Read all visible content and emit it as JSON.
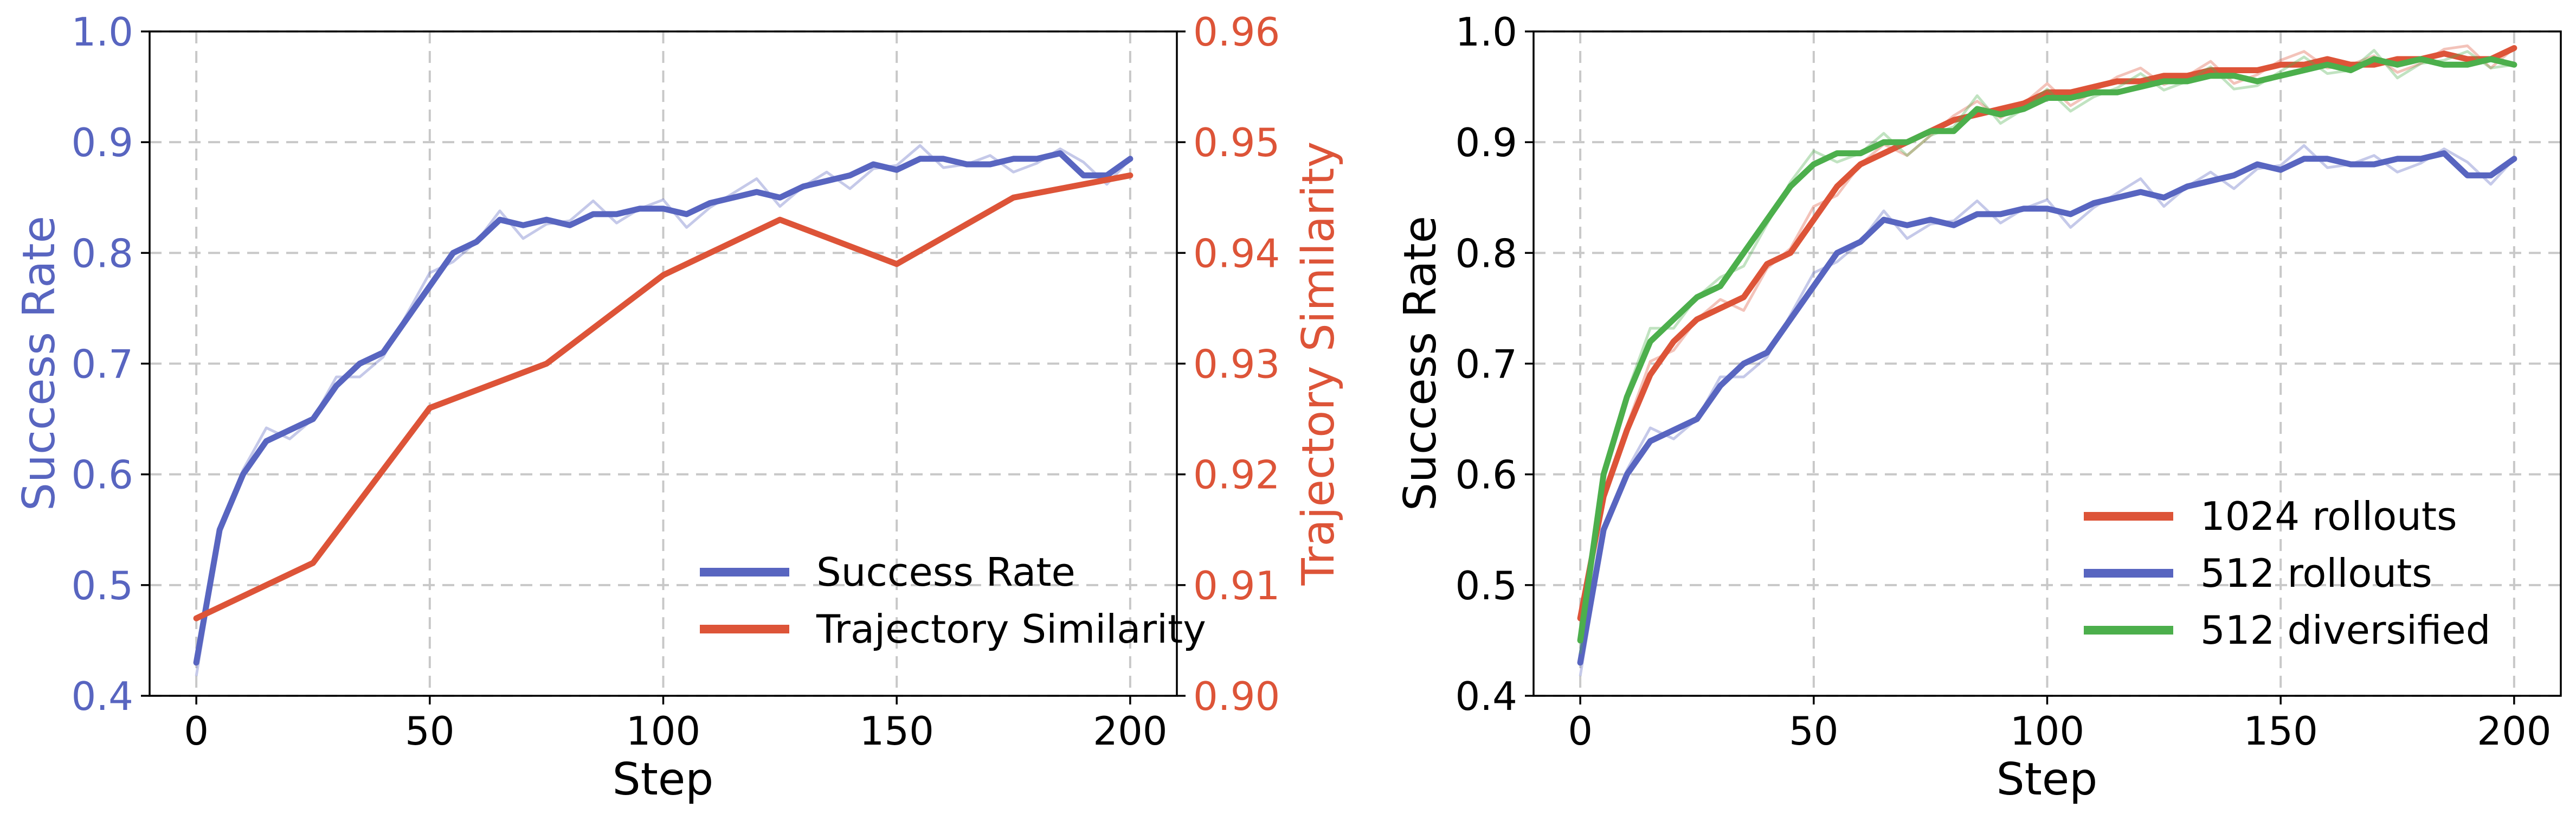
{
  "colors": {
    "success": "#5865c0",
    "trajectory": "#dd5438",
    "r1024": "#dd5438",
    "r512": "#5865c0",
    "r512div": "#4caf4c"
  },
  "chart_data": [
    {
      "type": "line",
      "xlabel": "Step",
      "ylabel": "Success Rate",
      "y2label": "Trajectory Similarity",
      "xlim": [
        -10,
        210
      ],
      "ylim": [
        0.4,
        1.0
      ],
      "y2lim": [
        0.9,
        0.96
      ],
      "xticks": [
        "0",
        "50",
        "100",
        "150",
        "200"
      ],
      "yticks": [
        "0.4",
        "0.5",
        "0.6",
        "0.7",
        "0.8",
        "0.9",
        "1.0"
      ],
      "y2ticks": [
        "0.90",
        "0.91",
        "0.92",
        "0.93",
        "0.94",
        "0.95",
        "0.96"
      ],
      "grid": true,
      "legend_position": "lower-right",
      "series": [
        {
          "name": "Success Rate",
          "axis": "left",
          "x": [
            0,
            5,
            10,
            15,
            20,
            25,
            30,
            35,
            40,
            45,
            50,
            55,
            60,
            65,
            70,
            75,
            80,
            85,
            90,
            95,
            100,
            105,
            110,
            115,
            120,
            125,
            130,
            135,
            140,
            145,
            150,
            155,
            160,
            165,
            170,
            175,
            180,
            185,
            190,
            195,
            200
          ],
          "values": [
            0.43,
            0.55,
            0.6,
            0.63,
            0.64,
            0.65,
            0.68,
            0.7,
            0.71,
            0.74,
            0.77,
            0.8,
            0.81,
            0.83,
            0.825,
            0.83,
            0.825,
            0.835,
            0.835,
            0.84,
            0.84,
            0.835,
            0.845,
            0.85,
            0.855,
            0.85,
            0.86,
            0.865,
            0.87,
            0.88,
            0.875,
            0.885,
            0.885,
            0.88,
            0.88,
            0.885,
            0.885,
            0.89,
            0.87,
            0.87,
            0.885
          ]
        },
        {
          "name": "Trajectory Similarity",
          "axis": "right",
          "x": [
            0,
            25,
            50,
            75,
            100,
            125,
            150,
            175,
            200
          ],
          "values": [
            0.907,
            0.912,
            0.926,
            0.93,
            0.938,
            0.943,
            0.939,
            0.945,
            0.947
          ]
        }
      ]
    },
    {
      "type": "line",
      "xlabel": "Step",
      "ylabel": "Success Rate",
      "xlim": [
        -10,
        210
      ],
      "ylim": [
        0.4,
        1.0
      ],
      "xticks": [
        "0",
        "50",
        "100",
        "150",
        "200"
      ],
      "yticks": [
        "0.4",
        "0.5",
        "0.6",
        "0.7",
        "0.8",
        "0.9",
        "1.0"
      ],
      "grid": true,
      "legend_position": "lower-right",
      "series": [
        {
          "name": "1024 rollouts",
          "x": [
            0,
            5,
            10,
            15,
            20,
            25,
            30,
            35,
            40,
            45,
            50,
            55,
            60,
            65,
            70,
            75,
            80,
            85,
            90,
            95,
            100,
            105,
            110,
            115,
            120,
            125,
            130,
            135,
            140,
            145,
            150,
            155,
            160,
            165,
            170,
            175,
            180,
            185,
            190,
            195,
            200
          ],
          "values": [
            0.47,
            0.58,
            0.64,
            0.69,
            0.72,
            0.74,
            0.75,
            0.76,
            0.79,
            0.8,
            0.83,
            0.86,
            0.88,
            0.89,
            0.9,
            0.91,
            0.92,
            0.925,
            0.93,
            0.935,
            0.945,
            0.945,
            0.95,
            0.955,
            0.955,
            0.96,
            0.96,
            0.965,
            0.965,
            0.965,
            0.97,
            0.97,
            0.975,
            0.97,
            0.97,
            0.975,
            0.975,
            0.98,
            0.975,
            0.975,
            0.985
          ]
        },
        {
          "name": "512 rollouts",
          "x": [
            0,
            5,
            10,
            15,
            20,
            25,
            30,
            35,
            40,
            45,
            50,
            55,
            60,
            65,
            70,
            75,
            80,
            85,
            90,
            95,
            100,
            105,
            110,
            115,
            120,
            125,
            130,
            135,
            140,
            145,
            150,
            155,
            160,
            165,
            170,
            175,
            180,
            185,
            190,
            195,
            200
          ],
          "values": [
            0.43,
            0.55,
            0.6,
            0.63,
            0.64,
            0.65,
            0.68,
            0.7,
            0.71,
            0.74,
            0.77,
            0.8,
            0.81,
            0.83,
            0.825,
            0.83,
            0.825,
            0.835,
            0.835,
            0.84,
            0.84,
            0.835,
            0.845,
            0.85,
            0.855,
            0.85,
            0.86,
            0.865,
            0.87,
            0.88,
            0.875,
            0.885,
            0.885,
            0.88,
            0.88,
            0.885,
            0.885,
            0.89,
            0.87,
            0.87,
            0.885
          ]
        },
        {
          "name": "512 diversified",
          "x": [
            0,
            5,
            10,
            15,
            20,
            25,
            30,
            35,
            40,
            45,
            50,
            55,
            60,
            65,
            70,
            75,
            80,
            85,
            90,
            95,
            100,
            105,
            110,
            115,
            120,
            125,
            130,
            135,
            140,
            145,
            150,
            155,
            160,
            165,
            170,
            175,
            180,
            185,
            190,
            195,
            200
          ],
          "values": [
            0.45,
            0.6,
            0.67,
            0.72,
            0.74,
            0.76,
            0.77,
            0.8,
            0.83,
            0.86,
            0.88,
            0.89,
            0.89,
            0.9,
            0.9,
            0.91,
            0.91,
            0.93,
            0.925,
            0.93,
            0.94,
            0.94,
            0.945,
            0.945,
            0.95,
            0.955,
            0.955,
            0.96,
            0.96,
            0.955,
            0.96,
            0.965,
            0.97,
            0.965,
            0.975,
            0.97,
            0.975,
            0.97,
            0.97,
            0.975,
            0.97
          ]
        }
      ]
    }
  ]
}
